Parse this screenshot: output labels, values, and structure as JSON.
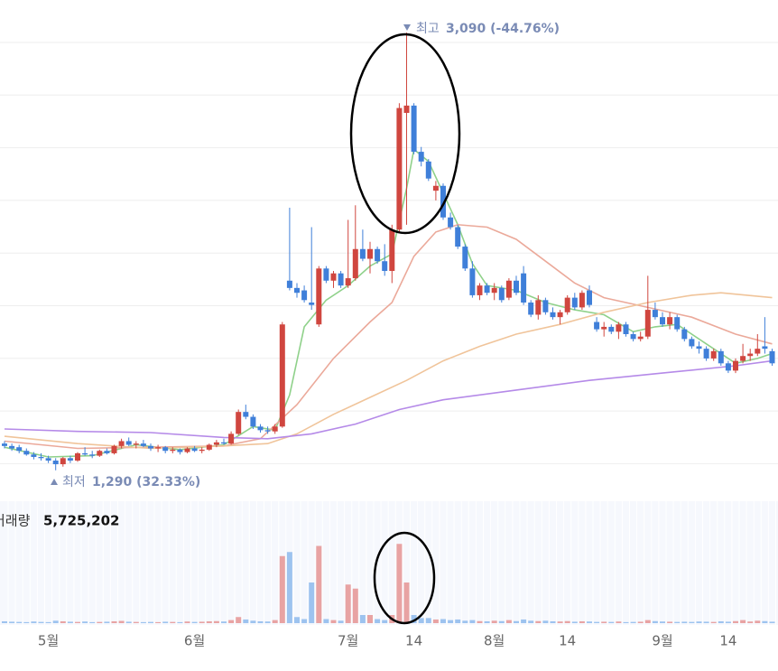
{
  "chart_data": {
    "type": "candlestick",
    "categories": [
      null,
      null,
      null,
      null,
      null,
      null,
      "5월",
      null,
      null,
      null,
      null,
      null,
      null,
      null,
      null,
      null,
      null,
      null,
      null,
      null,
      null,
      null,
      null,
      null,
      null,
      null,
      "6월",
      null,
      null,
      null,
      null,
      null,
      null,
      null,
      null,
      null,
      null,
      null,
      null,
      null,
      null,
      null,
      null,
      null,
      null,
      null,
      null,
      "7월",
      null,
      null,
      null,
      null,
      null,
      null,
      null,
      null,
      "14",
      null,
      null,
      null,
      null,
      null,
      null,
      null,
      null,
      null,
      null,
      "8월",
      null,
      null,
      null,
      null,
      null,
      null,
      null,
      null,
      null,
      "14",
      null,
      null,
      null,
      null,
      null,
      null,
      null,
      null,
      null,
      null,
      null,
      null,
      "9월",
      null,
      null,
      null,
      null,
      null,
      null,
      null,
      null,
      "14",
      null,
      null,
      null,
      null,
      null,
      null
    ],
    "candles": [
      [
        1400,
        1410,
        1380,
        1390
      ],
      [
        1390,
        1400,
        1370,
        1380
      ],
      [
        1385,
        1395,
        1360,
        1370
      ],
      [
        1370,
        1380,
        1350,
        1355
      ],
      [
        1355,
        1365,
        1335,
        1345
      ],
      [
        1345,
        1360,
        1330,
        1340
      ],
      [
        1340,
        1350,
        1320,
        1330
      ],
      [
        1330,
        1340,
        1290,
        1315
      ],
      [
        1315,
        1345,
        1305,
        1340
      ],
      [
        1340,
        1350,
        1320,
        1330
      ],
      [
        1330,
        1365,
        1325,
        1360
      ],
      [
        1360,
        1385,
        1350,
        1355
      ],
      [
        1355,
        1370,
        1340,
        1350
      ],
      [
        1350,
        1375,
        1345,
        1370
      ],
      [
        1370,
        1380,
        1355,
        1360
      ],
      [
        1360,
        1395,
        1355,
        1390
      ],
      [
        1390,
        1420,
        1380,
        1410
      ],
      [
        1410,
        1425,
        1390,
        1395
      ],
      [
        1395,
        1410,
        1380,
        1400
      ],
      [
        1400,
        1415,
        1385,
        1390
      ],
      [
        1390,
        1400,
        1370,
        1380
      ],
      [
        1380,
        1395,
        1365,
        1385
      ],
      [
        1385,
        1390,
        1360,
        1370
      ],
      [
        1370,
        1385,
        1360,
        1375
      ],
      [
        1375,
        1380,
        1355,
        1365
      ],
      [
        1365,
        1385,
        1360,
        1380
      ],
      [
        1380,
        1390,
        1365,
        1370
      ],
      [
        1370,
        1385,
        1360,
        1375
      ],
      [
        1375,
        1400,
        1370,
        1395
      ],
      [
        1395,
        1415,
        1385,
        1405
      ],
      [
        1405,
        1420,
        1395,
        1400
      ],
      [
        1400,
        1450,
        1395,
        1440
      ],
      [
        1440,
        1540,
        1435,
        1530
      ],
      [
        1530,
        1560,
        1500,
        1510
      ],
      [
        1510,
        1520,
        1460,
        1470
      ],
      [
        1470,
        1480,
        1445,
        1455
      ],
      [
        1455,
        1470,
        1440,
        1450
      ],
      [
        1450,
        1480,
        1440,
        1470
      ],
      [
        1470,
        1900,
        1465,
        1890
      ],
      [
        2070,
        2370,
        2030,
        2040
      ],
      [
        2040,
        2060,
        2000,
        2020
      ],
      [
        2030,
        2050,
        1980,
        1990
      ],
      [
        1980,
        2290,
        1950,
        1970
      ],
      [
        1890,
        2130,
        1880,
        2120
      ],
      [
        2120,
        2130,
        2060,
        2070
      ],
      [
        2070,
        2110,
        2040,
        2100
      ],
      [
        2100,
        2110,
        2040,
        2050
      ],
      [
        2050,
        2320,
        2040,
        2080
      ],
      [
        2080,
        2380,
        2070,
        2200
      ],
      [
        2200,
        2280,
        2150,
        2160
      ],
      [
        2160,
        2230,
        2100,
        2200
      ],
      [
        2200,
        2210,
        2140,
        2150
      ],
      [
        2150,
        2220,
        2090,
        2110
      ],
      [
        2110,
        2300,
        2060,
        2280
      ],
      [
        2280,
        2800,
        2270,
        2780
      ],
      [
        2760,
        3090,
        2300,
        2790
      ],
      [
        2790,
        2800,
        2590,
        2600
      ],
      [
        2600,
        2620,
        2540,
        2560
      ],
      [
        2560,
        2570,
        2480,
        2490
      ],
      [
        2440,
        2480,
        2400,
        2460
      ],
      [
        2460,
        2470,
        2320,
        2330
      ],
      [
        2330,
        2350,
        2280,
        2290
      ],
      [
        2290,
        2300,
        2200,
        2210
      ],
      [
        2210,
        2220,
        2110,
        2120
      ],
      [
        2120,
        2150,
        2000,
        2010
      ],
      [
        2010,
        2060,
        1990,
        2050
      ],
      [
        2050,
        2060,
        2010,
        2020
      ],
      [
        2020,
        2060,
        1990,
        2040
      ],
      [
        2040,
        2050,
        1980,
        1990
      ],
      [
        2000,
        2080,
        1990,
        2070
      ],
      [
        2070,
        2090,
        2010,
        2020
      ],
      [
        2100,
        2130,
        1970,
        1980
      ],
      [
        1980,
        1990,
        1920,
        1930
      ],
      [
        1930,
        2010,
        1910,
        1990
      ],
      [
        1990,
        2000,
        1930,
        1940
      ],
      [
        1940,
        1960,
        1910,
        1920
      ],
      [
        1920,
        1950,
        1890,
        1940
      ],
      [
        1940,
        2010,
        1930,
        2000
      ],
      [
        2000,
        2020,
        1950,
        1960
      ],
      [
        1960,
        2030,
        1950,
        2020
      ],
      [
        2030,
        2050,
        1960,
        1970
      ],
      [
        1900,
        1920,
        1860,
        1870
      ],
      [
        1870,
        1900,
        1840,
        1880
      ],
      [
        1880,
        1890,
        1850,
        1860
      ],
      [
        1860,
        1900,
        1830,
        1890
      ],
      [
        1890,
        1900,
        1840,
        1850
      ],
      [
        1850,
        1860,
        1820,
        1830
      ],
      [
        1830,
        1860,
        1820,
        1840
      ],
      [
        1840,
        2090,
        1830,
        1950
      ],
      [
        1950,
        1980,
        1910,
        1920
      ],
      [
        1920,
        1940,
        1880,
        1890
      ],
      [
        1890,
        1940,
        1870,
        1920
      ],
      [
        1920,
        1930,
        1860,
        1870
      ],
      [
        1870,
        1880,
        1820,
        1830
      ],
      [
        1830,
        1840,
        1790,
        1800
      ],
      [
        1800,
        1820,
        1770,
        1790
      ],
      [
        1790,
        1800,
        1740,
        1750
      ],
      [
        1750,
        1790,
        1740,
        1780
      ],
      [
        1780,
        1790,
        1720,
        1730
      ],
      [
        1730,
        1740,
        1690,
        1700
      ],
      [
        1700,
        1750,
        1690,
        1740
      ],
      [
        1740,
        1810,
        1730,
        1760
      ],
      [
        1760,
        1790,
        1740,
        1770
      ],
      [
        1770,
        1850,
        1760,
        1790
      ],
      [
        1800,
        1920,
        1770,
        1790
      ],
      [
        1780,
        1790,
        1720,
        1730
      ]
    ],
    "volume": [
      900000,
      700000,
      600000,
      500000,
      800000,
      600000,
      500000,
      1200000,
      900000,
      700000,
      600000,
      800000,
      500000,
      600000,
      700000,
      900000,
      1100000,
      700000,
      600000,
      500000,
      600000,
      500000,
      700000,
      600000,
      500000,
      800000,
      600000,
      700000,
      900000,
      1000000,
      800000,
      1500000,
      3000000,
      1800000,
      1200000,
      900000,
      800000,
      1500000,
      33000000,
      35000000,
      3000000,
      2000000,
      20000000,
      38000000,
      2000000,
      1500000,
      1200000,
      19000000,
      17000000,
      4000000,
      4000000,
      2000000,
      1500000,
      4000000,
      39000000,
      20000000,
      4000000,
      2500000,
      2500000,
      1800000,
      2000000,
      1500000,
      1800000,
      1200000,
      1500000,
      1000000,
      900000,
      1200000,
      1000000,
      1500000,
      1000000,
      1800000,
      1200000,
      1000000,
      1200000,
      900000,
      800000,
      1000000,
      700000,
      900000,
      800000,
      600000,
      700000,
      600000,
      800000,
      500000,
      600000,
      700000,
      1500000,
      1000000,
      800000,
      700000,
      600000,
      700000,
      600000,
      800000,
      700000,
      600000,
      900000,
      700000,
      1000000,
      1500000,
      800000,
      1200000,
      1000000,
      700000
    ],
    "ma": [
      {
        "color": "#8fd18a",
        "x": [
          0,
          6,
          12,
          18,
          24,
          30,
          34,
          37,
          39,
          41,
          44,
          47,
          50,
          53,
          55,
          56,
          58,
          60,
          62,
          64,
          66,
          70,
          74,
          78,
          82,
          86,
          89,
          92,
          96,
          100,
          103,
          105
        ],
        "values": [
          1385,
          1345,
          1350,
          1395,
          1375,
          1395,
          1470,
          1455,
          1600,
          1880,
          1990,
          2050,
          2130,
          2180,
          2450,
          2610,
          2560,
          2430,
          2300,
          2140,
          2050,
          2030,
          1980,
          1950,
          1930,
          1860,
          1880,
          1890,
          1810,
          1730,
          1750,
          1770
        ]
      },
      {
        "color": "#eba99a",
        "x": [
          0,
          10,
          20,
          30,
          35,
          40,
          45,
          50,
          53,
          56,
          59,
          62,
          66,
          70,
          74,
          78,
          82,
          88,
          94,
          100,
          105
        ],
        "values": [
          1410,
          1380,
          1385,
          1390,
          1420,
          1560,
          1750,
          1900,
          1980,
          2170,
          2270,
          2300,
          2290,
          2240,
          2150,
          2060,
          2000,
          1960,
          1920,
          1850,
          1810
        ]
      },
      {
        "color": "#f0c49a",
        "x": [
          0,
          10,
          20,
          30,
          36,
          40,
          45,
          50,
          55,
          60,
          65,
          70,
          76,
          82,
          88,
          94,
          98,
          105
        ],
        "values": [
          1430,
          1400,
          1380,
          1390,
          1400,
          1440,
          1520,
          1590,
          1660,
          1740,
          1800,
          1850,
          1890,
          1940,
          1980,
          2010,
          2020,
          2000
        ]
      },
      {
        "color": "#b58ae8",
        "x": [
          0,
          10,
          20,
          30,
          36,
          42,
          48,
          54,
          60,
          70,
          80,
          90,
          100,
          105
        ],
        "values": [
          1460,
          1450,
          1445,
          1425,
          1420,
          1440,
          1480,
          1540,
          1580,
          1620,
          1660,
          1690,
          1720,
          1740
        ]
      }
    ],
    "up_color": "#d0463f",
    "down_color": "#3f7fd9",
    "vol_up_color": "#e8a3a3",
    "vol_down_color": "#9dc3ef",
    "ylim": [
      1200,
      3150
    ],
    "vol_ylim": [
      0,
      60000000
    ],
    "annotations": [
      {
        "label": "최고",
        "text": "3,090 (-44.76%)"
      },
      {
        "label": "최저",
        "text": "1,290 (32.33%)"
      }
    ],
    "volume_label": "거래량",
    "volume_value": "5,725,202"
  }
}
